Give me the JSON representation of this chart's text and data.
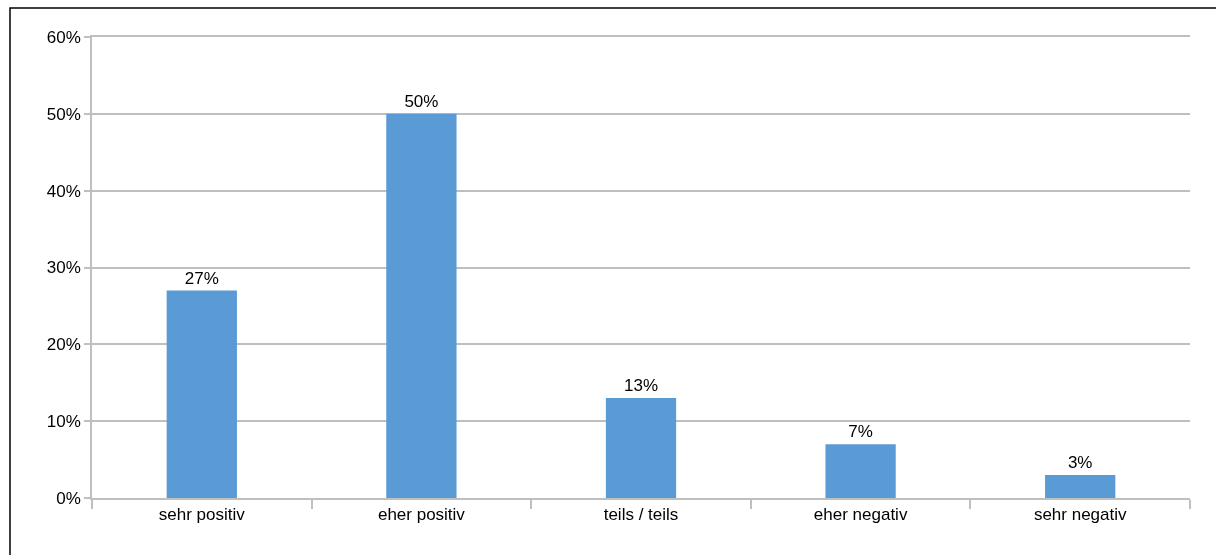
{
  "chart_data": {
    "type": "bar",
    "categories": [
      "sehr positiv",
      "eher positiv",
      "teils / teils",
      "eher negativ",
      "sehr negativ"
    ],
    "series": [
      {
        "color": "#5b9bd5",
        "values": [
          27,
          50,
          13,
          7,
          3
        ],
        "value_labels": [
          "27%",
          "50%",
          "13%",
          "7%",
          "3%"
        ]
      }
    ],
    "ylim": [
      0,
      60
    ],
    "yticks": [
      {
        "value": 0,
        "label": "0%"
      },
      {
        "value": 10,
        "label": "10%"
      },
      {
        "value": 20,
        "label": "20%"
      },
      {
        "value": 30,
        "label": "30%"
      },
      {
        "value": 40,
        "label": "40%"
      },
      {
        "value": 50,
        "label": "50%"
      },
      {
        "value": 60,
        "label": "60%"
      }
    ],
    "grid": "y"
  }
}
